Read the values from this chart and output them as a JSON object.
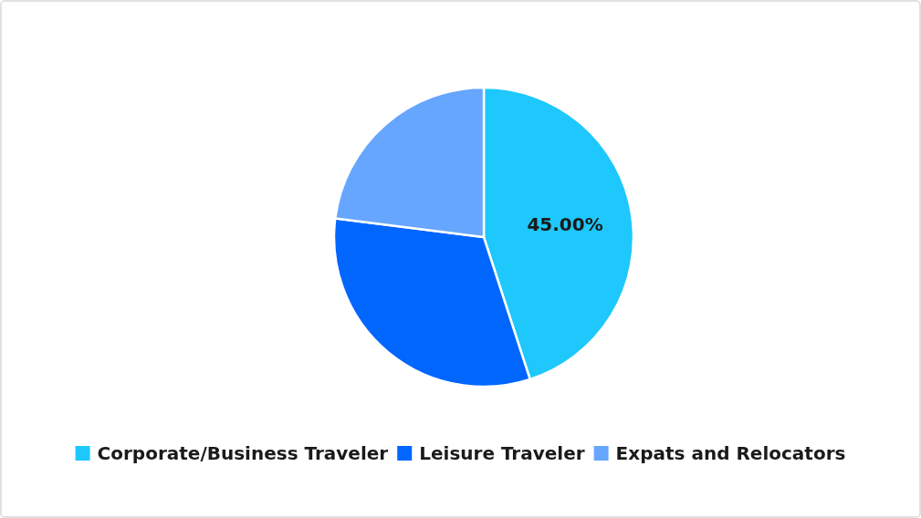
{
  "chart_data": {
    "type": "pie",
    "categories": [
      "Corporate/Business Traveler",
      "Leisure Traveler",
      "Expats and Relocators"
    ],
    "values": [
      45,
      32,
      23
    ],
    "colors": [
      "#1ec8fc",
      "#0066fe",
      "#66a6fe"
    ],
    "value_labels": [
      "45.00%",
      null,
      null
    ],
    "legend": "bottom"
  }
}
